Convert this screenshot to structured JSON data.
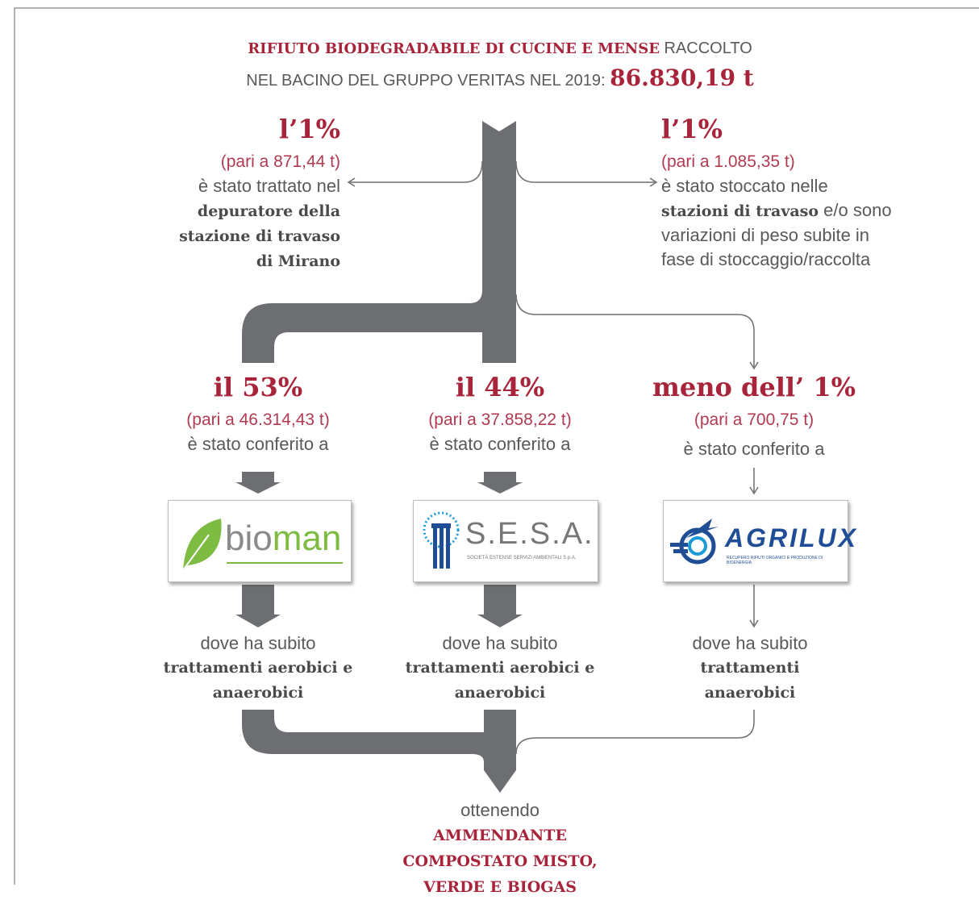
{
  "header": {
    "highlight": "RIFIUTO BIODEGRADABILE DI CUCINE E MENSE",
    "line1_rest": "RACCOLTO",
    "line2": "NEL BACINO DEL GRUPPO VERITAS NEL 2019:",
    "total": "86.830,19 t"
  },
  "outflows": [
    {
      "percent": "l’1%",
      "amount": "(pari a 871,44 t)",
      "text": "è stato trattato nel",
      "bold": "depuratore della stazione di travaso di Mirano"
    },
    {
      "percent": "l’1%",
      "amount": "(pari a 1.085,35 t)",
      "text": "è stato stoccato nelle",
      "bold": "stazioni di travaso",
      "text_end": "e/o sono variazioni di peso subite in fase di stoccaggio/raccolta"
    }
  ],
  "plants": [
    {
      "percent": "il 53%",
      "amount": "(pari a 46.314,43 t)",
      "text": "è stato conferito a",
      "logo": {
        "name_a": "bio",
        "name_b": "man"
      },
      "result": "dove ha subito",
      "treatment": "trattamenti aerobici e anaerobici"
    },
    {
      "percent": "il 44%",
      "amount": "(pari a 37.858,22 t)",
      "text": "è stato conferito a",
      "logo": {
        "name": "S.E.S.A.",
        "subtitle": "SOCIETÀ ESTENSE SERVIZI AMBIENTALI S.p.A."
      },
      "result": "dove ha subito",
      "treatment": "trattamenti aerobici e anaerobici"
    },
    {
      "percent": "meno dell’ 1%",
      "amount": "(pari a 700,75 t)",
      "text": "è stato conferito a",
      "logo": {
        "name": "AGRILUX",
        "subtitle": "RECUPERO RIFIUTI ORGANICI E PRODUZIONE DI BIOENERGIA"
      },
      "result": "dove ha subito",
      "treatment": "trattamenti anaerobici"
    }
  ],
  "footer": {
    "text": "ottenendo",
    "highlight": "AMMENDANTE COMPOSTATO MISTO, VERDE E BIOGAS"
  }
}
